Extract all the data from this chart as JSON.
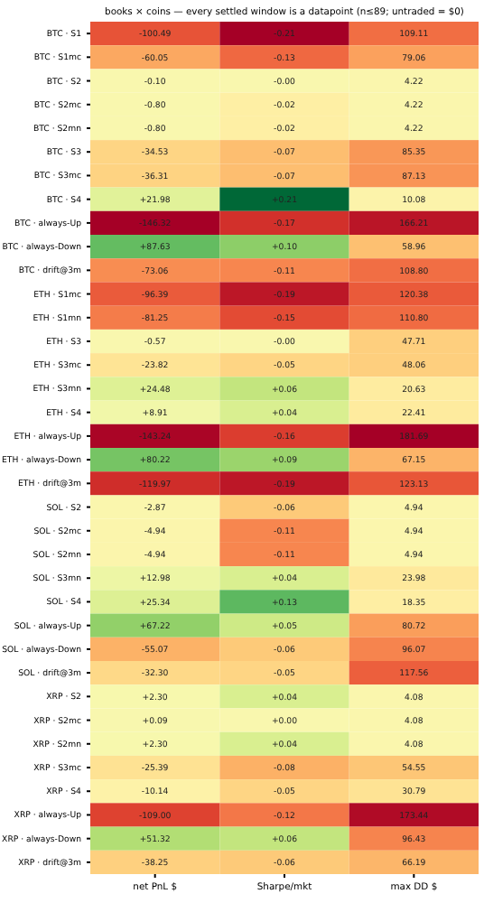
{
  "chart_data": {
    "type": "heatmap",
    "title": "books × coins — every settled window is a datapoint (n≤89; untraded = $0)",
    "categories": [
      "net PnL $",
      "Sharpe/mkt",
      "max DD $"
    ],
    "y_categories": [
      "BTC · S1",
      "BTC · S1mc",
      "BTC · S2",
      "BTC · S2mc",
      "BTC · S2mn",
      "BTC · S3",
      "BTC · S3mc",
      "BTC · S4",
      "BTC · always-Up",
      "BTC · always-Down",
      "BTC · drift@3m",
      "ETH · S1mc",
      "ETH · S1mn",
      "ETH · S3",
      "ETH · S3mc",
      "ETH · S3mn",
      "ETH · S4",
      "ETH · always-Up",
      "ETH · always-Down",
      "ETH · drift@3m",
      "SOL · S2",
      "SOL · S2mc",
      "SOL · S2mn",
      "SOL · S3mn",
      "SOL · S4",
      "SOL · always-Up",
      "SOL · always-Down",
      "SOL · drift@3m",
      "XRP · S2",
      "XRP · S2mc",
      "XRP · S2mn",
      "XRP · S3mc",
      "XRP · S4",
      "XRP · always-Up",
      "XRP · always-Down",
      "XRP · drift@3m"
    ],
    "cells": [
      [
        -100.49,
        -0.21,
        109.11
      ],
      [
        -60.05,
        -0.13,
        79.06
      ],
      [
        -0.1,
        0,
        4.22
      ],
      [
        -0.8,
        -0.02,
        4.22
      ],
      [
        -0.8,
        -0.02,
        4.22
      ],
      [
        -34.53,
        -0.07,
        85.35
      ],
      [
        -36.31,
        -0.07,
        87.13
      ],
      [
        21.98,
        0.21,
        10.08
      ],
      [
        -146.32,
        -0.17,
        166.21
      ],
      [
        87.63,
        0.1,
        58.96
      ],
      [
        -73.06,
        -0.11,
        108.8
      ],
      [
        -96.39,
        -0.19,
        120.38
      ],
      [
        -81.25,
        -0.15,
        110.8
      ],
      [
        -0.57,
        0,
        47.71
      ],
      [
        -23.82,
        -0.05,
        48.06
      ],
      [
        24.48,
        0.06,
        20.63
      ],
      [
        8.91,
        0.04,
        22.41
      ],
      [
        -143.24,
        -0.16,
        181.69
      ],
      [
        80.22,
        0.09,
        67.15
      ],
      [
        -119.97,
        -0.19,
        123.13
      ],
      [
        -2.87,
        -0.06,
        4.94
      ],
      [
        -4.94,
        -0.11,
        4.94
      ],
      [
        -4.94,
        -0.11,
        4.94
      ],
      [
        12.98,
        0.04,
        23.98
      ],
      [
        25.34,
        0.13,
        18.35
      ],
      [
        67.22,
        0.05,
        80.72
      ],
      [
        -55.07,
        -0.06,
        96.07
      ],
      [
        -32.3,
        -0.05,
        117.56
      ],
      [
        2.3,
        0.04,
        4.08
      ],
      [
        0.09,
        0,
        4.08
      ],
      [
        2.3,
        0.04,
        4.08
      ],
      [
        -25.39,
        -0.08,
        54.55
      ],
      [
        -10.14,
        -0.05,
        30.79
      ],
      [
        -109.0,
        -0.12,
        173.44
      ],
      [
        51.32,
        0.06,
        96.43
      ],
      [
        -38.25,
        -0.06,
        66.19
      ]
    ],
    "cell_labels": [
      [
        "-100.49",
        "-0.21",
        "109.11"
      ],
      [
        "-60.05",
        "-0.13",
        "79.06"
      ],
      [
        "-0.10",
        "-0.00",
        "4.22"
      ],
      [
        "-0.80",
        "-0.02",
        "4.22"
      ],
      [
        "-0.80",
        "-0.02",
        "4.22"
      ],
      [
        "-34.53",
        "-0.07",
        "85.35"
      ],
      [
        "-36.31",
        "-0.07",
        "87.13"
      ],
      [
        "+21.98",
        "+0.21",
        "10.08"
      ],
      [
        "-146.32",
        "-0.17",
        "166.21"
      ],
      [
        "+87.63",
        "+0.10",
        "58.96"
      ],
      [
        "-73.06",
        "-0.11",
        "108.80"
      ],
      [
        "-96.39",
        "-0.19",
        "120.38"
      ],
      [
        "-81.25",
        "-0.15",
        "110.80"
      ],
      [
        "-0.57",
        "-0.00",
        "47.71"
      ],
      [
        "-23.82",
        "-0.05",
        "48.06"
      ],
      [
        "+24.48",
        "+0.06",
        "20.63"
      ],
      [
        "+8.91",
        "+0.04",
        "22.41"
      ],
      [
        "-143.24",
        "-0.16",
        "181.69"
      ],
      [
        "+80.22",
        "+0.09",
        "67.15"
      ],
      [
        "-119.97",
        "-0.19",
        "123.13"
      ],
      [
        "-2.87",
        "-0.06",
        "4.94"
      ],
      [
        "-4.94",
        "-0.11",
        "4.94"
      ],
      [
        "-4.94",
        "-0.11",
        "4.94"
      ],
      [
        "+12.98",
        "+0.04",
        "23.98"
      ],
      [
        "+25.34",
        "+0.13",
        "18.35"
      ],
      [
        "+67.22",
        "+0.05",
        "80.72"
      ],
      [
        "-55.07",
        "-0.06",
        "96.07"
      ],
      [
        "-32.30",
        "-0.05",
        "117.56"
      ],
      [
        "+2.30",
        "+0.04",
        "4.08"
      ],
      [
        "+0.09",
        "+0.00",
        "4.08"
      ],
      [
        "+2.30",
        "+0.04",
        "4.08"
      ],
      [
        "-25.39",
        "-0.08",
        "54.55"
      ],
      [
        "-10.14",
        "-0.05",
        "30.79"
      ],
      [
        "-109.00",
        "-0.12",
        "173.44"
      ],
      [
        "+51.32",
        "+0.06",
        "96.43"
      ],
      [
        "-38.25",
        "-0.06",
        "66.19"
      ]
    ]
  }
}
